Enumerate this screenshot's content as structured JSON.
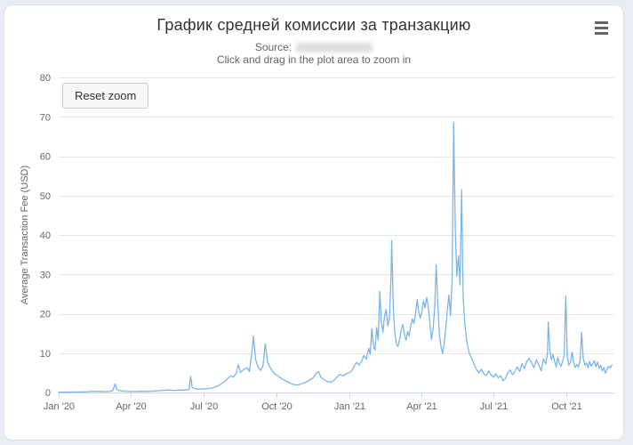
{
  "header": {
    "title": "График средней комиссии за транзакцию",
    "subtitle_source_label": "Source:",
    "subtitle_hint": "Click and drag in the plot area to zoom in",
    "reset_zoom_label": "Reset zoom"
  },
  "colors": {
    "series": "#7cb5ec",
    "grid": "#e6e6e6",
    "axis_line": "#ccd6eb",
    "axis_text": "#666666",
    "title_text": "#333333"
  },
  "chart_data": {
    "type": "line",
    "title": "График средней комиссии за транзакцию",
    "xlabel": "",
    "ylabel": "Average Transaction Fee (USD)",
    "ylim": [
      0,
      80
    ],
    "yticks": [
      0,
      10,
      20,
      30,
      40,
      50,
      60,
      70,
      80
    ],
    "x_range": [
      "2020-01-01",
      "2021-11-29"
    ],
    "xticks": [
      {
        "date": "2020-01-01",
        "label": "Jan '20"
      },
      {
        "date": "2020-04-01",
        "label": "Apr '20"
      },
      {
        "date": "2020-07-01",
        "label": "Jul '20"
      },
      {
        "date": "2020-10-01",
        "label": "Oct '20"
      },
      {
        "date": "2021-01-01",
        "label": "Jan '21"
      },
      {
        "date": "2021-04-01",
        "label": "Apr '21"
      },
      {
        "date": "2021-07-01",
        "label": "Jul '21"
      },
      {
        "date": "2021-10-01",
        "label": "Oct '21"
      }
    ],
    "grid": "on",
    "legend": "off",
    "series": [
      {
        "name": "Average Transaction Fee (USD)",
        "color": "#7cb5ec",
        "points": [
          [
            "2020-01-01",
            0.09
          ],
          [
            "2020-01-05",
            0.1
          ],
          [
            "2020-01-09",
            0.11
          ],
          [
            "2020-01-13",
            0.1
          ],
          [
            "2020-01-17",
            0.12
          ],
          [
            "2020-01-21",
            0.13
          ],
          [
            "2020-01-25",
            0.12
          ],
          [
            "2020-01-29",
            0.14
          ],
          [
            "2020-02-02",
            0.16
          ],
          [
            "2020-02-06",
            0.2
          ],
          [
            "2020-02-10",
            0.24
          ],
          [
            "2020-02-14",
            0.28
          ],
          [
            "2020-02-18",
            0.32
          ],
          [
            "2020-02-22",
            0.26
          ],
          [
            "2020-02-26",
            0.22
          ],
          [
            "2020-03-01",
            0.25
          ],
          [
            "2020-03-05",
            0.3
          ],
          [
            "2020-03-09",
            0.45
          ],
          [
            "2020-03-12",
            2.2
          ],
          [
            "2020-03-14",
            0.9
          ],
          [
            "2020-03-17",
            0.5
          ],
          [
            "2020-03-21",
            0.38
          ],
          [
            "2020-03-25",
            0.32
          ],
          [
            "2020-03-29",
            0.28
          ],
          [
            "2020-04-02",
            0.26
          ],
          [
            "2020-04-06",
            0.24
          ],
          [
            "2020-04-10",
            0.28
          ],
          [
            "2020-04-14",
            0.3
          ],
          [
            "2020-04-18",
            0.32
          ],
          [
            "2020-04-22",
            0.3
          ],
          [
            "2020-04-26",
            0.34
          ],
          [
            "2020-04-30",
            0.38
          ],
          [
            "2020-05-04",
            0.42
          ],
          [
            "2020-05-08",
            0.48
          ],
          [
            "2020-05-12",
            0.55
          ],
          [
            "2020-05-16",
            0.6
          ],
          [
            "2020-05-20",
            0.58
          ],
          [
            "2020-05-24",
            0.52
          ],
          [
            "2020-05-28",
            0.56
          ],
          [
            "2020-06-01",
            0.6
          ],
          [
            "2020-06-05",
            0.62
          ],
          [
            "2020-06-09",
            0.68
          ],
          [
            "2020-06-13",
            0.8
          ],
          [
            "2020-06-15",
            4.1
          ],
          [
            "2020-06-17",
            1.3
          ],
          [
            "2020-06-21",
            0.95
          ],
          [
            "2020-06-25",
            0.85
          ],
          [
            "2020-06-29",
            0.9
          ],
          [
            "2020-07-03",
            0.92
          ],
          [
            "2020-07-07",
            1.0
          ],
          [
            "2020-07-11",
            1.1
          ],
          [
            "2020-07-15",
            1.3
          ],
          [
            "2020-07-19",
            1.6
          ],
          [
            "2020-07-23",
            2.1
          ],
          [
            "2020-07-27",
            2.6
          ],
          [
            "2020-07-31",
            3.4
          ],
          [
            "2020-08-04",
            4.2
          ],
          [
            "2020-08-08",
            3.9
          ],
          [
            "2020-08-12",
            5.2
          ],
          [
            "2020-08-14",
            7.1
          ],
          [
            "2020-08-17",
            5.1
          ],
          [
            "2020-08-21",
            5.9
          ],
          [
            "2020-08-25",
            6.3
          ],
          [
            "2020-08-28",
            5.3
          ],
          [
            "2020-09-01",
            11.8
          ],
          [
            "2020-09-02",
            14.3
          ],
          [
            "2020-09-05",
            8.2
          ],
          [
            "2020-09-08",
            6.4
          ],
          [
            "2020-09-11",
            5.6
          ],
          [
            "2020-09-14",
            6.8
          ],
          [
            "2020-09-17",
            12.4
          ],
          [
            "2020-09-20",
            7.6
          ],
          [
            "2020-09-23",
            6.4
          ],
          [
            "2020-09-26",
            5.4
          ],
          [
            "2020-09-29",
            4.7
          ],
          [
            "2020-10-03",
            4.2
          ],
          [
            "2020-10-07",
            3.6
          ],
          [
            "2020-10-11",
            3.1
          ],
          [
            "2020-10-15",
            2.7
          ],
          [
            "2020-10-19",
            2.3
          ],
          [
            "2020-10-23",
            2.0
          ],
          [
            "2020-10-27",
            1.9
          ],
          [
            "2020-10-31",
            2.1
          ],
          [
            "2020-11-04",
            2.4
          ],
          [
            "2020-11-08",
            2.7
          ],
          [
            "2020-11-12",
            3.2
          ],
          [
            "2020-11-16",
            3.7
          ],
          [
            "2020-11-20",
            4.9
          ],
          [
            "2020-11-23",
            5.3
          ],
          [
            "2020-11-26",
            3.9
          ],
          [
            "2020-11-30",
            3.2
          ],
          [
            "2020-12-04",
            2.8
          ],
          [
            "2020-12-08",
            2.6
          ],
          [
            "2020-12-12",
            3.0
          ],
          [
            "2020-12-16",
            3.9
          ],
          [
            "2020-12-20",
            4.6
          ],
          [
            "2020-12-24",
            4.2
          ],
          [
            "2020-12-28",
            4.8
          ],
          [
            "2021-01-01",
            5.0
          ],
          [
            "2021-01-04",
            5.6
          ],
          [
            "2021-01-07",
            6.9
          ],
          [
            "2021-01-10",
            7.6
          ],
          [
            "2021-01-13",
            7.0
          ],
          [
            "2021-01-16",
            7.8
          ],
          [
            "2021-01-19",
            9.4
          ],
          [
            "2021-01-22",
            8.5
          ],
          [
            "2021-01-25",
            11.2
          ],
          [
            "2021-01-27",
            9.6
          ],
          [
            "2021-01-29",
            16.2
          ],
          [
            "2021-01-31",
            12.1
          ],
          [
            "2021-02-02",
            10.7
          ],
          [
            "2021-02-04",
            16.5
          ],
          [
            "2021-02-06",
            13.3
          ],
          [
            "2021-02-08",
            25.6
          ],
          [
            "2021-02-10",
            17.9
          ],
          [
            "2021-02-12",
            15.3
          ],
          [
            "2021-02-14",
            19.4
          ],
          [
            "2021-02-16",
            21.1
          ],
          [
            "2021-02-18",
            16.9
          ],
          [
            "2021-02-20",
            18.5
          ],
          [
            "2021-02-22",
            28.2
          ],
          [
            "2021-02-23",
            38.6
          ],
          [
            "2021-02-25",
            21.6
          ],
          [
            "2021-02-27",
            14.9
          ],
          [
            "2021-03-01",
            12.3
          ],
          [
            "2021-03-03",
            11.7
          ],
          [
            "2021-03-05",
            13.5
          ],
          [
            "2021-03-07",
            15.9
          ],
          [
            "2021-03-09",
            17.3
          ],
          [
            "2021-03-11",
            14.7
          ],
          [
            "2021-03-13",
            13.3
          ],
          [
            "2021-03-15",
            15.5
          ],
          [
            "2021-03-17",
            14.3
          ],
          [
            "2021-03-19",
            16.9
          ],
          [
            "2021-03-21",
            18.7
          ],
          [
            "2021-03-23",
            17.5
          ],
          [
            "2021-03-25",
            19.9
          ],
          [
            "2021-03-27",
            23.6
          ],
          [
            "2021-03-29",
            20.5
          ],
          [
            "2021-03-31",
            18.9
          ],
          [
            "2021-04-02",
            20.7
          ],
          [
            "2021-04-04",
            23.3
          ],
          [
            "2021-04-06",
            21.5
          ],
          [
            "2021-04-08",
            24.1
          ],
          [
            "2021-04-10",
            21.9
          ],
          [
            "2021-04-12",
            17.7
          ],
          [
            "2021-04-14",
            13.5
          ],
          [
            "2021-04-16",
            15.9
          ],
          [
            "2021-04-18",
            21.3
          ],
          [
            "2021-04-20",
            32.4
          ],
          [
            "2021-04-22",
            22.7
          ],
          [
            "2021-04-24",
            14.9
          ],
          [
            "2021-04-26",
            11.7
          ],
          [
            "2021-04-28",
            9.9
          ],
          [
            "2021-04-30",
            12.5
          ],
          [
            "2021-05-02",
            16.3
          ],
          [
            "2021-05-04",
            21.1
          ],
          [
            "2021-05-06",
            24.7
          ],
          [
            "2021-05-08",
            19.5
          ],
          [
            "2021-05-10",
            28.1
          ],
          [
            "2021-05-12",
            68.6
          ],
          [
            "2021-05-14",
            41.3
          ],
          [
            "2021-05-16",
            29.5
          ],
          [
            "2021-05-18",
            34.7
          ],
          [
            "2021-05-20",
            27.3
          ],
          [
            "2021-05-22",
            51.5
          ],
          [
            "2021-05-24",
            23.9
          ],
          [
            "2021-05-26",
            17.5
          ],
          [
            "2021-05-28",
            13.7
          ],
          [
            "2021-05-30",
            11.3
          ],
          [
            "2021-06-01",
            9.7
          ],
          [
            "2021-06-04",
            8.5
          ],
          [
            "2021-06-07",
            6.9
          ],
          [
            "2021-06-10",
            5.7
          ],
          [
            "2021-06-13",
            5.0
          ],
          [
            "2021-06-16",
            5.9
          ],
          [
            "2021-06-19",
            4.7
          ],
          [
            "2021-06-22",
            4.3
          ],
          [
            "2021-06-25",
            5.5
          ],
          [
            "2021-06-28",
            4.5
          ],
          [
            "2021-07-01",
            3.9
          ],
          [
            "2021-07-04",
            4.7
          ],
          [
            "2021-07-07",
            3.7
          ],
          [
            "2021-07-10",
            4.3
          ],
          [
            "2021-07-13",
            3.0
          ],
          [
            "2021-07-16",
            3.5
          ],
          [
            "2021-07-19",
            4.9
          ],
          [
            "2021-07-22",
            5.7
          ],
          [
            "2021-07-25",
            4.5
          ],
          [
            "2021-07-28",
            5.3
          ],
          [
            "2021-07-31",
            6.5
          ],
          [
            "2021-08-03",
            5.3
          ],
          [
            "2021-08-06",
            7.3
          ],
          [
            "2021-08-09",
            6.1
          ],
          [
            "2021-08-12",
            7.9
          ],
          [
            "2021-08-15",
            8.7
          ],
          [
            "2021-08-18",
            7.5
          ],
          [
            "2021-08-21",
            6.3
          ],
          [
            "2021-08-24",
            8.3
          ],
          [
            "2021-08-27",
            7.1
          ],
          [
            "2021-08-30",
            5.5
          ],
          [
            "2021-09-02",
            8.5
          ],
          [
            "2021-09-05",
            7.3
          ],
          [
            "2021-09-07",
            9.9
          ],
          [
            "2021-09-08",
            17.9
          ],
          [
            "2021-09-10",
            10.5
          ],
          [
            "2021-09-12",
            8.3
          ],
          [
            "2021-09-14",
            9.7
          ],
          [
            "2021-09-16",
            7.9
          ],
          [
            "2021-09-18",
            6.5
          ],
          [
            "2021-09-20",
            8.9
          ],
          [
            "2021-09-22",
            7.3
          ],
          [
            "2021-09-24",
            6.7
          ],
          [
            "2021-09-26",
            7.9
          ],
          [
            "2021-09-28",
            9.5
          ],
          [
            "2021-09-30",
            24.5
          ],
          [
            "2021-10-02",
            9.3
          ],
          [
            "2021-10-04",
            6.9
          ],
          [
            "2021-10-06",
            7.7
          ],
          [
            "2021-10-08",
            10.3
          ],
          [
            "2021-10-10",
            7.5
          ],
          [
            "2021-10-12",
            6.3
          ],
          [
            "2021-10-14",
            7.1
          ],
          [
            "2021-10-16",
            6.5
          ],
          [
            "2021-10-18",
            8.3
          ],
          [
            "2021-10-20",
            15.2
          ],
          [
            "2021-10-22",
            8.7
          ],
          [
            "2021-10-24",
            6.9
          ],
          [
            "2021-10-26",
            7.5
          ],
          [
            "2021-10-28",
            6.3
          ],
          [
            "2021-10-30",
            7.9
          ],
          [
            "2021-11-01",
            6.7
          ],
          [
            "2021-11-03",
            7.3
          ],
          [
            "2021-11-05",
            8.1
          ],
          [
            "2021-11-07",
            6.5
          ],
          [
            "2021-11-09",
            7.7
          ],
          [
            "2021-11-11",
            6.1
          ],
          [
            "2021-11-13",
            6.9
          ],
          [
            "2021-11-15",
            5.5
          ],
          [
            "2021-11-17",
            6.3
          ],
          [
            "2021-11-19",
            4.9
          ],
          [
            "2021-11-21",
            5.9
          ],
          [
            "2021-11-23",
            6.7
          ],
          [
            "2021-11-25",
            6.2
          ],
          [
            "2021-11-27",
            7.0
          ]
        ]
      }
    ]
  }
}
